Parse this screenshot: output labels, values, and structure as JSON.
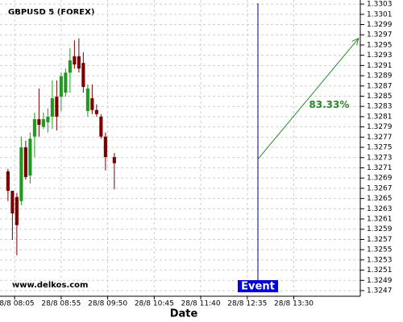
{
  "chart_data": {
    "type": "candlestick",
    "title": "GBPUSD 5 (FOREX)",
    "watermark": "www.delkos.com",
    "x_label": "Date",
    "x": [
      0,
      1,
      2,
      3,
      4,
      5,
      6,
      7,
      8,
      9,
      10,
      11,
      12,
      13,
      14,
      15,
      16,
      17,
      18,
      19,
      20,
      21,
      22,
      24
    ],
    "open": [
      1.32703,
      1.32665,
      1.32653,
      1.32645,
      1.3275,
      1.32695,
      1.32771,
      1.32805,
      1.3279,
      1.32799,
      1.3281,
      1.32849,
      1.32849,
      1.32857,
      1.32896,
      1.32928,
      1.32928,
      1.32915,
      1.32821,
      1.32846,
      1.32823,
      1.3281,
      1.32771,
      1.32731
    ],
    "high": [
      1.32708,
      1.32665,
      1.32661,
      1.32771,
      1.32763,
      1.32779,
      1.32818,
      1.32865,
      1.32818,
      1.32826,
      1.32881,
      1.32881,
      1.32896,
      1.32904,
      1.32944,
      1.32959,
      1.32963,
      1.32936,
      1.32873,
      1.32873,
      1.32834,
      1.32815,
      1.32779,
      1.32739
    ],
    "low": [
      1.32645,
      1.32569,
      1.32539,
      1.32637,
      1.32687,
      1.32679,
      1.32731,
      1.32771,
      1.32786,
      1.32779,
      1.32786,
      1.32783,
      1.32821,
      1.32849,
      1.32857,
      1.32904,
      1.32896,
      1.32857,
      1.3281,
      1.32815,
      1.3281,
      1.32767,
      1.32705,
      1.32668
    ],
    "close": [
      1.32665,
      1.32621,
      1.32598,
      1.3275,
      1.32692,
      1.32767,
      1.32805,
      1.32794,
      1.32805,
      1.3281,
      1.32846,
      1.3281,
      1.32889,
      1.32896,
      1.3292,
      1.32912,
      1.32904,
      1.32868,
      1.32865,
      1.32823,
      1.32815,
      1.32771,
      1.32731,
      1.32719
    ],
    "up_color": "#1e9b1e",
    "down_color": "#7a0000",
    "xlim": [
      -1.8,
      79.5
    ],
    "xticks": [
      {
        "value": 1.5,
        "label": "28/8 08:05"
      },
      {
        "value": 12,
        "label": "28/8 08:55"
      },
      {
        "value": 22.5,
        "label": "28/8 09:50"
      },
      {
        "value": 33,
        "label": "28/8 10:45"
      },
      {
        "value": 43.5,
        "label": "28/8 11:40"
      },
      {
        "value": 54,
        "label": "28/8 12:35"
      },
      {
        "value": 64.5,
        "label": "28/8 13:30"
      }
    ],
    "ylim": [
      1.32459,
      1.33038
    ],
    "yticks": [
      1.3303,
      1.3301,
      1.3299,
      1.3297,
      1.3295,
      1.3293,
      1.3291,
      1.3289,
      1.3287,
      1.3285,
      1.3283,
      1.3281,
      1.3279,
      1.3277,
      1.3275,
      1.3273,
      1.3271,
      1.3269,
      1.3267,
      1.3265,
      1.3263,
      1.3261,
      1.3259,
      1.3257,
      1.3255,
      1.3253,
      1.3251,
      1.3249,
      1.3247
    ],
    "grid": true,
    "event": {
      "label": "Event",
      "x": 56.4,
      "color": "#0000ee"
    },
    "arrow": {
      "x": [
        56.4,
        79.1
      ],
      "y": [
        1.32727,
        1.32963
      ],
      "label": "83.33%",
      "color": "#228b22"
    }
  }
}
